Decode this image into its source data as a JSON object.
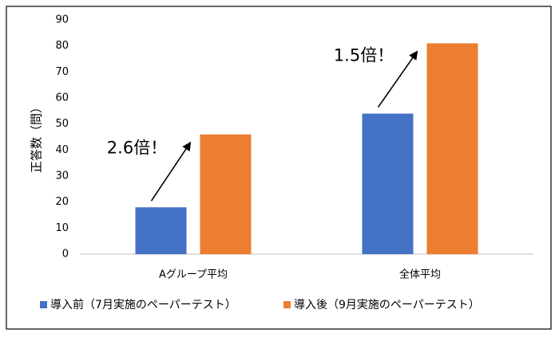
{
  "chart_data": {
    "type": "bar",
    "y_label": "正答数（問）",
    "categories": [
      "Aグループ平均",
      "全体平均"
    ],
    "series": [
      {
        "name": "導入前（7月実施のペーパーテスト）",
        "color": "#4472c4",
        "values": [
          18,
          54
        ]
      },
      {
        "name": "導入後（9月実施のペーパーテスト）",
        "color": "#ed7d31",
        "values": [
          46,
          81
        ]
      }
    ],
    "annotations": [
      "2.6倍！",
      "1.5倍！"
    ],
    "ylim": [
      0,
      90
    ],
    "yticks": [
      0,
      10,
      20,
      30,
      40,
      50,
      60,
      70,
      80,
      90
    ]
  }
}
